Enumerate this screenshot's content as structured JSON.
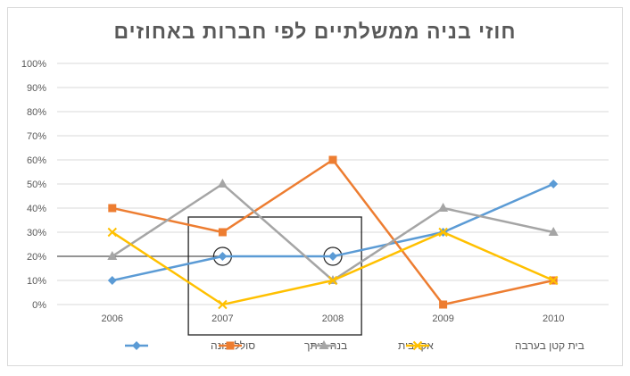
{
  "chart_data": {
    "type": "line",
    "title": "חוזי בניה ממשלתיים לפי חברות באחוזים",
    "categories": [
      "2006",
      "2007",
      "2008",
      "2009",
      "2010"
    ],
    "y_ticks": [
      "0%",
      "10%",
      "20%",
      "30%",
      "40%",
      "50%",
      "60%",
      "70%",
      "80%",
      "90%",
      "100%"
    ],
    "ylim": [
      0,
      100
    ],
    "y_unit": "%",
    "grid": true,
    "legend_position": "bottom",
    "series": [
      {
        "name": "סולל-בונה",
        "color": "#5B9BD5",
        "marker": "diamond",
        "values": [
          10,
          20,
          20,
          30,
          50
        ]
      },
      {
        "name": "בנה-ביתך",
        "color": "#ED7D31",
        "marker": "square",
        "values": [
          40,
          30,
          60,
          0,
          10
        ]
      },
      {
        "name": "אקו-בית",
        "color": "#A5A5A5",
        "marker": "triangle",
        "values": [
          20,
          50,
          10,
          40,
          30
        ]
      },
      {
        "name": "בית קטן בערבה",
        "color": "#FFC000",
        "marker": "x",
        "values": [
          30,
          0,
          10,
          30,
          10
        ]
      }
    ],
    "annotations": {
      "reference_line_value": 20,
      "highlight_box_categories": [
        "2007",
        "2008"
      ],
      "circled_points": [
        {
          "series": "סולל-בונה",
          "category": "2007"
        },
        {
          "series": "סולל-בונה",
          "category": "2008"
        }
      ]
    }
  }
}
